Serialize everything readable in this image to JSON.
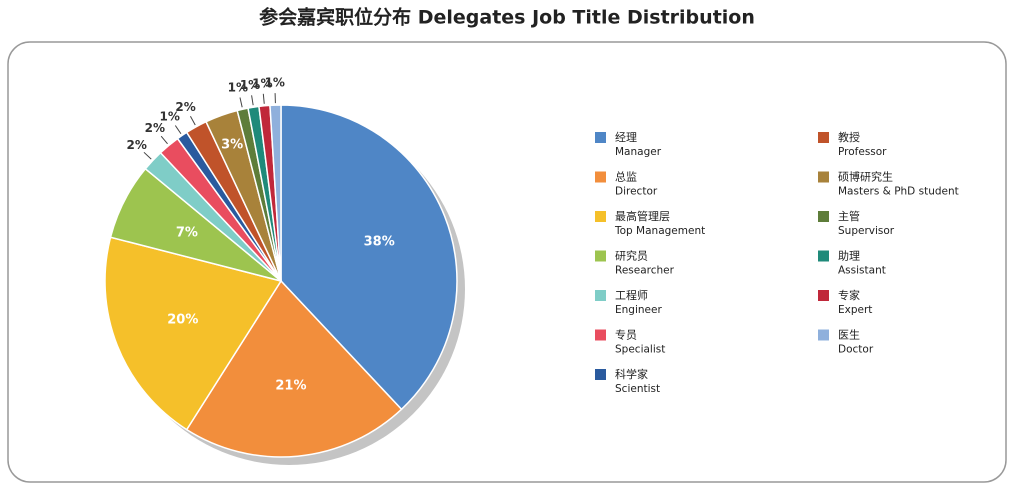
{
  "chart_data": {
    "type": "pie",
    "title": "参会嘉宾职位分布 Delegates Job Title Distribution",
    "categories": [
      "经理",
      "总监",
      "最高管理层",
      "研究员",
      "工程师",
      "专员",
      "科学家",
      "教授",
      "硕博研究生",
      "主管",
      "助理",
      "专家",
      "医生"
    ],
    "categories_en": [
      "Manager",
      "Director",
      "Top Management",
      "Researcher",
      "Engineer",
      "Specialist",
      "Scientist",
      "Professor",
      "Masters & PhD student",
      "Supervisor",
      "Assistant",
      "Expert",
      "Doctor"
    ],
    "values": [
      38,
      21,
      20,
      7,
      2,
      2,
      1,
      2,
      3,
      1,
      1,
      1,
      1
    ],
    "value_labels": [
      "38%",
      "21%",
      "20%",
      "7%",
      "2%",
      "2%",
      "1%",
      "2%",
      "3%",
      "1%",
      "1%",
      "1%",
      "1%"
    ],
    "colors": [
      "#4f86c6",
      "#f28e3c",
      "#f5c02a",
      "#9dc44f",
      "#7fcdc7",
      "#e94d5f",
      "#2a5a9e",
      "#c0532a",
      "#a8823a",
      "#5e7d3a",
      "#1f8a7a",
      "#c0283a",
      "#8fb0dc"
    ]
  }
}
